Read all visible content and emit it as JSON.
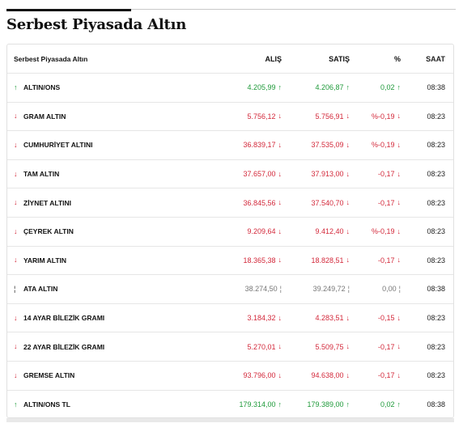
{
  "section_title": "Serbest Piyasada Altın",
  "table": {
    "headers": {
      "name": "Serbest Piyasada Altın",
      "alis": "ALIŞ",
      "satis": "SATIŞ",
      "pct": "%",
      "saat": "SAAT"
    },
    "icons": {
      "up": "↑",
      "down": "↓",
      "flat": "¦"
    },
    "colors": {
      "up": "#1f9a3a",
      "down": "#d3283a",
      "flat": "#777777"
    },
    "rows": [
      {
        "name": "ALTIN/ONS",
        "dir": "up",
        "alis": "4.205,99",
        "satis": "4.206,87",
        "pct": "0,02",
        "saat": "08:38"
      },
      {
        "name": "GRAM ALTIN",
        "dir": "down",
        "alis": "5.756,12",
        "satis": "5.756,91",
        "pct": "%-0,19",
        "saat": "08:23"
      },
      {
        "name": "CUMHURİYET ALTINI",
        "dir": "down",
        "alis": "36.839,17",
        "satis": "37.535,09",
        "pct": "%-0,19",
        "saat": "08:23"
      },
      {
        "name": "TAM ALTIN",
        "dir": "down",
        "alis": "37.657,00",
        "satis": "37.913,00",
        "pct": "-0,17",
        "saat": "08:23"
      },
      {
        "name": "ZİYNET ALTINI",
        "dir": "down",
        "alis": "36.845,56",
        "satis": "37.540,70",
        "pct": "-0,17",
        "saat": "08:23"
      },
      {
        "name": "ÇEYREK ALTIN",
        "dir": "down",
        "alis": "9.209,64",
        "satis": "9.412,40",
        "pct": "%-0,19",
        "saat": "08:23"
      },
      {
        "name": "YARIM ALTIN",
        "dir": "down",
        "alis": "18.365,38",
        "satis": "18.828,51",
        "pct": "-0,17",
        "saat": "08:23"
      },
      {
        "name": "ATA ALTIN",
        "dir": "flat",
        "alis": "38.274,50",
        "satis": "39.249,72",
        "pct": "0,00",
        "saat": "08:38"
      },
      {
        "name": "14 AYAR BİLEZİK GRAMI",
        "dir": "down",
        "alis": "3.184,32",
        "satis": "4.283,51",
        "pct": "-0,15",
        "saat": "08:23"
      },
      {
        "name": "22 AYAR BİLEZİK GRAMI",
        "dir": "down",
        "alis": "5.270,01",
        "satis": "5.509,75",
        "pct": "-0,17",
        "saat": "08:23"
      },
      {
        "name": "GREMSE ALTIN",
        "dir": "down",
        "alis": "93.796,00",
        "satis": "94.638,00",
        "pct": "-0,17",
        "saat": "08:23"
      },
      {
        "name": "ALTIN/ONS TL",
        "dir": "up",
        "alis": "179.314,00",
        "satis": "179.389,00",
        "pct": "0,02",
        "saat": "08:38"
      }
    ]
  }
}
